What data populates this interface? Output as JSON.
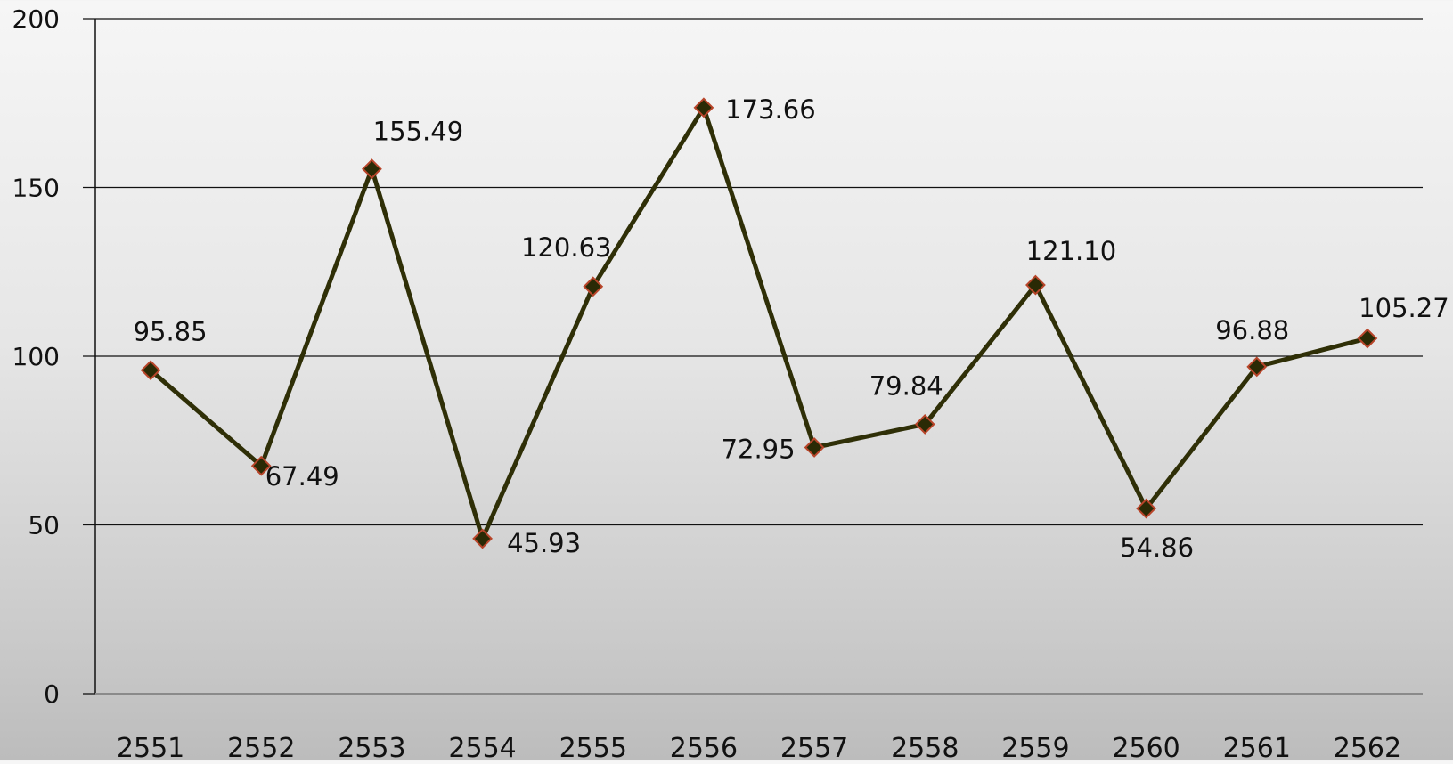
{
  "chart_data": {
    "type": "line",
    "title": "",
    "xlabel": "",
    "ylabel": "",
    "categories": [
      "2551",
      "2552",
      "2553",
      "2554",
      "2555",
      "2556",
      "2557",
      "2558",
      "2559",
      "2560",
      "2561",
      "2562"
    ],
    "series": [
      {
        "values": [
          95.85,
          67.49,
          155.49,
          45.93,
          120.63,
          173.66,
          72.95,
          79.84,
          121.1,
          54.86,
          96.88,
          105.27
        ],
        "data_labels": [
          "95.85",
          "67.49",
          "155.49",
          "45.93",
          "120.63",
          "173.66",
          "72.95",
          "79.84",
          "121.10",
          "54.86",
          "96.88",
          "105.27"
        ],
        "line_color": "#2f2f07",
        "marker": "diamond",
        "marker_fill": "#2a2a05",
        "marker_edge_color": "#b8452a"
      }
    ],
    "ylim": [
      0,
      200
    ],
    "yticks": [
      "0",
      "50",
      "100",
      "150",
      "200"
    ],
    "grid": "horizontal",
    "legend": "none"
  }
}
